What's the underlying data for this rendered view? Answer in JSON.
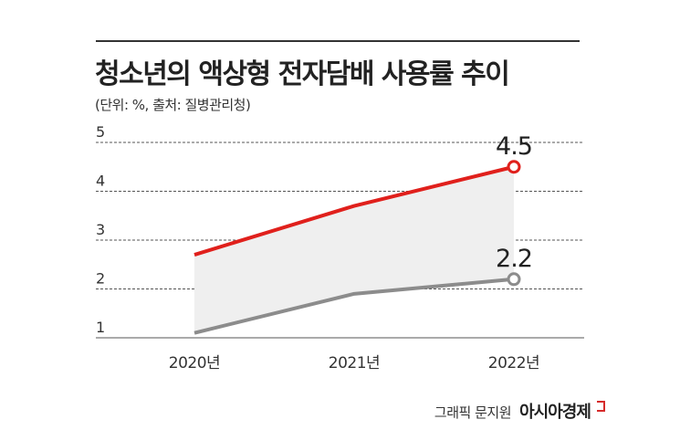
{
  "header": {
    "title": "청소년의 액상형 전자담배 사용률 추이",
    "subtitle": "(단위: %, 출처: 질병관리청)"
  },
  "credit": {
    "text": "그래픽 문지원",
    "brand": "아시아경제"
  },
  "chart_data": {
    "type": "line",
    "title": "청소년의 액상형 전자담배 사용률 추이",
    "subtitle": "(단위: %, 출처: 질병관리청)",
    "categories": [
      "2020년",
      "2021년",
      "2022년"
    ],
    "ylim": [
      1,
      5
    ],
    "yticks": [
      1,
      2,
      3,
      4,
      5
    ],
    "grid": true,
    "series": [
      {
        "values": [
          2.7,
          3.7,
          4.5
        ],
        "color": "#e0201c",
        "end_label": "4.5"
      },
      {
        "values": [
          1.1,
          1.9,
          2.2
        ],
        "color": "#8c8c8c",
        "end_label": "2.2"
      }
    ],
    "shade_color": "#efefef"
  }
}
